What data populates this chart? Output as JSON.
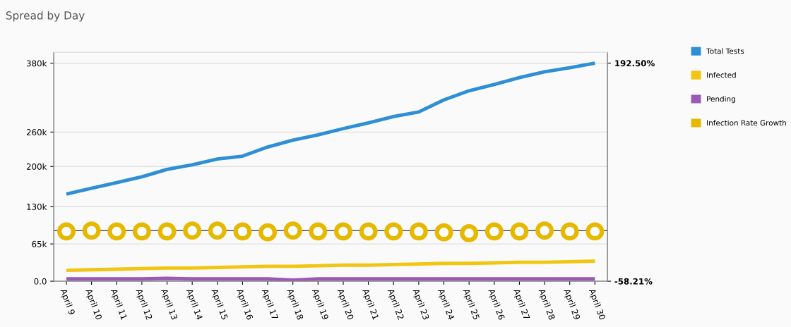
{
  "chart_data": {
    "type": "line",
    "title": "Spread by Day",
    "categories": [
      "April 9",
      "April 10",
      "April 11",
      "April 12",
      "April 13",
      "April 14",
      "April 15",
      "April 16",
      "April 17",
      "April 18",
      "April 19",
      "April 20",
      "April 21",
      "April 22",
      "April 23",
      "April 24",
      "April 25",
      "April 26",
      "April 27",
      "April 28",
      "April 29",
      "April 30"
    ],
    "series": [
      {
        "name": "Total Tests",
        "color": "#2e8fd6",
        "values": [
          152000,
          162000,
          172000,
          182000,
          195000,
          203000,
          213000,
          218000,
          234000,
          246000,
          255000,
          266000,
          276000,
          287000,
          295000,
          316000,
          332000,
          343000,
          355000,
          365000,
          372000,
          380000
        ]
      },
      {
        "name": "Infected",
        "color": "#f2c511",
        "values": [
          19000,
          20000,
          21000,
          22000,
          23000,
          23000,
          24000,
          25000,
          26000,
          26000,
          27000,
          28000,
          28000,
          29000,
          30000,
          31000,
          31000,
          32000,
          33000,
          33000,
          34000,
          35000
        ]
      },
      {
        "name": "Pending",
        "color": "#9b59b6",
        "values": [
          4000,
          4000,
          4000,
          4000,
          5000,
          4000,
          4000,
          4000,
          4000,
          2000,
          4000,
          4000,
          4000,
          4000,
          4000,
          4000,
          4000,
          4000,
          4000,
          4000,
          4000,
          4000
        ]
      },
      {
        "name": "Infection Rate Growth",
        "type": "scatter",
        "axis": "y2",
        "marker": "circle",
        "color": "#e6b800",
        "values": [
          -1,
          0,
          -1,
          -1,
          -1,
          0,
          0,
          -1,
          -2,
          0,
          -1,
          -1,
          -1,
          -1,
          -1,
          -2,
          -3,
          -1,
          -1,
          0,
          -1,
          -1
        ]
      }
    ],
    "ylim": [
      0,
      399000
    ],
    "yticks": [
      {
        "value": 0,
        "label": "0.0"
      },
      {
        "value": 65000,
        "label": "65k"
      },
      {
        "value": 130000,
        "label": "130k"
      },
      {
        "value": 200000,
        "label": "200k"
      },
      {
        "value": 260000,
        "label": "260k"
      },
      {
        "value": 380000,
        "label": "380k"
      }
    ],
    "y2lim": [
      -58.21,
      204.9
    ],
    "y2ticks": [
      {
        "value": -58.21,
        "label": "-58.21%"
      },
      {
        "value": 192.5,
        "label": "192.50%"
      }
    ],
    "ref_lines": [
      {
        "axis": "y2",
        "value": 0,
        "color": "#555555"
      }
    ],
    "grid": "y",
    "legend": "top right"
  }
}
